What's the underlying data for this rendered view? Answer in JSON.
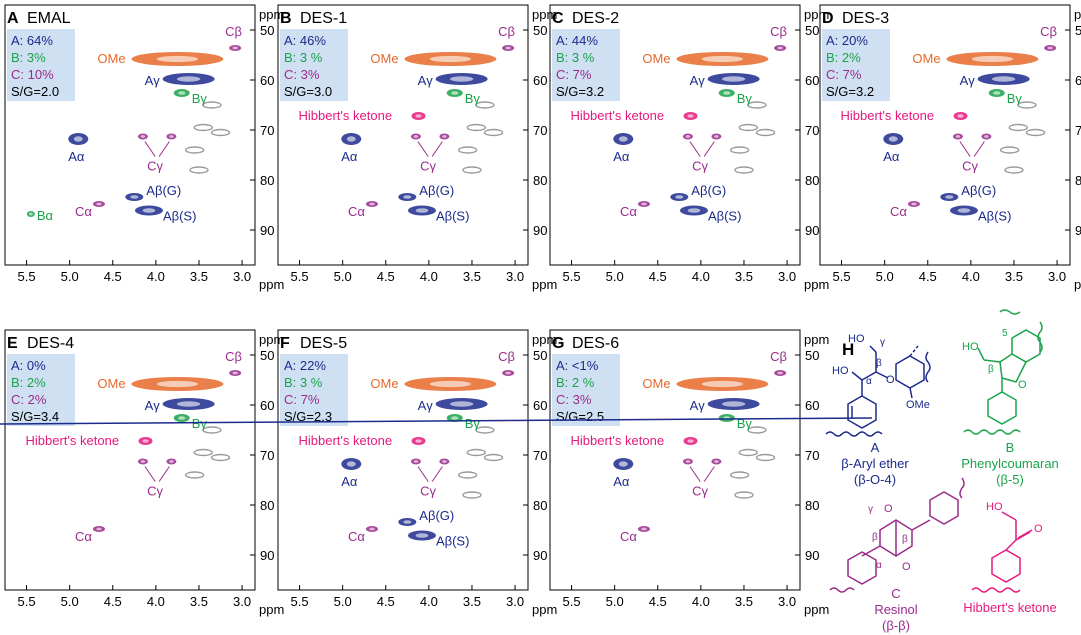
{
  "figure": {
    "axis_unit": "ppm",
    "x_ticks": [
      "5.5",
      "5.0",
      "4.5",
      "4.0",
      "3.5",
      "3.0"
    ],
    "y_ticks": [
      "50",
      "60",
      "70",
      "80",
      "90"
    ],
    "colors": {
      "blue": "#1c2a8c",
      "green": "#1aa34a",
      "purple": "#9a2b8c",
      "orange": "#e8692a",
      "pink": "#e6197e",
      "gray": "#9a9a9a",
      "boxbg": "#cfe0f3"
    }
  },
  "panels": [
    {
      "letter": "A",
      "name": "EMAL",
      "a": "A: 64%",
      "b": "B: 3%",
      "c": "C: 10%",
      "sg": "S/G=2.0"
    },
    {
      "letter": "B",
      "name": "DES-1",
      "a": "A: 46%",
      "b": "B: 3 %",
      "c": "C: 3%",
      "sg": "S/G=3.0"
    },
    {
      "letter": "C",
      "name": "DES-2",
      "a": "A: 44%",
      "b": "B: 3 %",
      "c": "C: 7%",
      "sg": "S/G=3.2"
    },
    {
      "letter": "D",
      "name": "DES-3",
      "a": "A: 20%",
      "b": "B: 2%",
      "c": "C: 7%",
      "sg": "S/G=3.2"
    },
    {
      "letter": "E",
      "name": "DES-4",
      "a": "A: 0%",
      "b": "B: 2%",
      "c": "C: 2%",
      "sg": "S/G=3.4"
    },
    {
      "letter": "F",
      "name": "DES-5",
      "a": "A: 22%",
      "b": "B: 3 %",
      "c": "C: 7%",
      "sg": "S/G=2.3"
    },
    {
      "letter": "G",
      "name": "DES-6",
      "a": "A: <1%",
      "b": "B: 2 %",
      "c": "C: 3%",
      "sg": "S/G=2.5"
    }
  ],
  "peak_labels": {
    "ome": "OMe",
    "cb": "Cβ",
    "ag": "Aγ",
    "bg": "Bγ",
    "ba": "Bα",
    "aa": "Aα",
    "cg": "Cγ",
    "ca": "Cα",
    "abg": "Aβ(G)",
    "abs": "Aβ(S)",
    "hk": "Hibbert's ketone"
  },
  "structures": {
    "letter": "H",
    "a_letter": "A",
    "a_name": "β-Aryl ether",
    "a_link": "(β-O-4)",
    "b_letter": "B",
    "b_name": "Phenylcoumaran",
    "b_link": "(β-5)",
    "c_letter": "C",
    "c_name": "Resinol",
    "c_link": "(β-β)",
    "hk_name": "Hibbert's ketone",
    "ho": "HO",
    "ome": "OMe",
    "o": "O",
    "alpha": "α",
    "beta": "β",
    "gamma": "γ",
    "five": "5"
  }
}
